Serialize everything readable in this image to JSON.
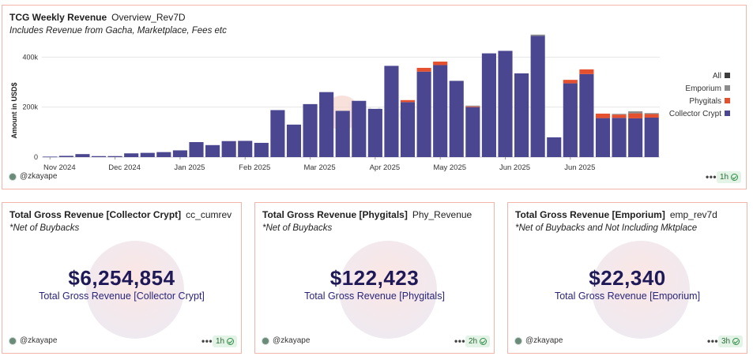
{
  "main_card": {
    "title": "TCG Weekly Revenue",
    "tag": "Overview_Rev7D",
    "subtitle": "Includes Revenue from Gacha, Marketplace, Fees etc",
    "user": "@zkayape",
    "freshness": "1h",
    "watermark": "Dune"
  },
  "chart_data": {
    "type": "bar",
    "stacked": true,
    "title": "TCG Weekly Revenue",
    "xlabel": "",
    "ylabel": "Amount in USD$",
    "ylim": [
      0,
      480000
    ],
    "yticks": [
      0,
      200000,
      400000
    ],
    "ytick_labels": [
      "0",
      "200k",
      "400k"
    ],
    "xtick_labels": [
      {
        "label": "Nov 2024",
        "index": 0
      },
      {
        "label": "Dec 2024",
        "index": 4
      },
      {
        "label": "Jan 2025",
        "index": 8
      },
      {
        "label": "Feb 2025",
        "index": 12
      },
      {
        "label": "Mar 2025",
        "index": 16
      },
      {
        "label": "Apr 2025",
        "index": 20
      },
      {
        "label": "May 2025",
        "index": 24
      },
      {
        "label": "Jun 2025",
        "index": 28
      },
      {
        "label": "Jun 2025",
        "index": 32
      }
    ],
    "legend_position": "right",
    "series": [
      {
        "name": "All",
        "color": "#3d3d3d",
        "values": [
          0,
          0,
          0,
          0,
          0,
          0,
          0,
          0,
          0,
          0,
          0,
          0,
          0,
          0,
          0,
          0,
          0,
          0,
          0,
          0,
          0,
          0,
          0,
          0,
          0,
          0,
          0,
          0,
          0,
          0,
          0,
          0,
          0,
          0,
          0,
          0,
          0,
          0
        ]
      },
      {
        "name": "Emporium",
        "color": "#8c8c8c",
        "values": [
          0,
          0,
          0,
          0,
          0,
          0,
          0,
          0,
          0,
          0,
          0,
          0,
          0,
          0,
          0,
          0,
          0,
          0,
          0,
          0,
          0,
          0,
          0,
          0,
          0,
          0,
          3000,
          0,
          0,
          0,
          5000,
          0,
          0,
          0,
          0,
          3000,
          8000,
          4000
        ]
      },
      {
        "name": "Phygitals",
        "color": "#e5512f",
        "values": [
          0,
          0,
          0,
          0,
          0,
          0,
          0,
          0,
          0,
          0,
          0,
          0,
          0,
          0,
          0,
          0,
          0,
          0,
          0,
          0,
          0,
          0,
          8000,
          15000,
          14000,
          0,
          3000,
          0,
          0,
          0,
          0,
          0,
          14000,
          19000,
          18000,
          13000,
          20000,
          14000
        ]
      },
      {
        "name": "Collector Crypt",
        "color": "#4a4690",
        "values": [
          2000,
          5000,
          12000,
          4000,
          4000,
          15000,
          17000,
          20000,
          27000,
          60000,
          48000,
          64000,
          65000,
          57000,
          188000,
          130000,
          212000,
          260000,
          185000,
          225000,
          193000,
          365000,
          220000,
          342000,
          368000,
          305000,
          200000,
          415000,
          425000,
          335000,
          485000,
          79000,
          295000,
          332000,
          156000,
          157000,
          155000,
          158000
        ]
      }
    ]
  },
  "counters": [
    {
      "title": "Total Gross Revenue [Collector Crypt]",
      "tag": "cc_cumrev",
      "subtitle": "*Net of Buybacks",
      "value": "$6,254,854",
      "label": "Total Gross Revenue [Collector Crypt]",
      "user": "@zkayape",
      "freshness": "1h"
    },
    {
      "title": "Total Gross Revenue [Phygitals]",
      "tag": "Phy_Revenue",
      "subtitle": "*Net of Buybacks",
      "value": "$122,423",
      "label": "Total Gross Revenue [Phygitals]",
      "user": "@zkayape",
      "freshness": "2h"
    },
    {
      "title": "Total Gross Revenue [Emporium]",
      "tag": "emp_rev7d",
      "subtitle": "*Net of Buybacks and Not Including Mktplace",
      "value": "$22,340",
      "label": "Total Gross Revenue [Emporium]",
      "user": "@zkayape",
      "freshness": "3h"
    }
  ],
  "footer_menu": "•••"
}
